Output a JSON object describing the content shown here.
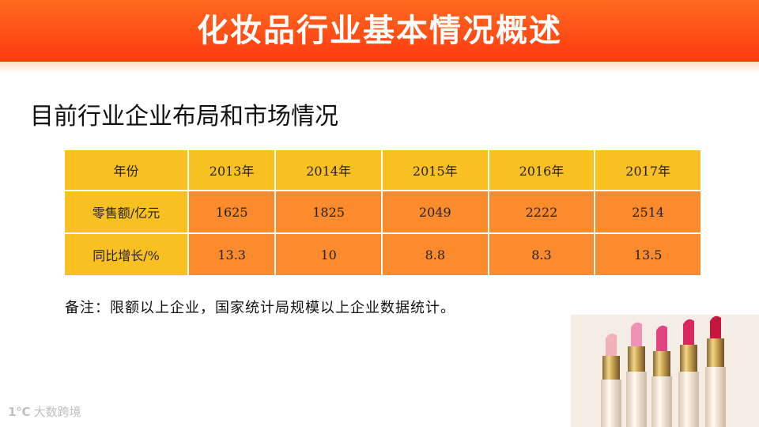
{
  "header": {
    "title": "化妆品行业基本情况概述"
  },
  "subtitle": "目前行业企业布局和市场情况",
  "table": {
    "headers": [
      "年份",
      "2013年",
      "2014年",
      "2015年",
      "2016年",
      "2017年"
    ],
    "rows": [
      [
        "零售额/亿元",
        "1625",
        "1825",
        "2049",
        "2222",
        "2514"
      ],
      [
        "同比增长/%",
        "13.3",
        "10",
        "8.8",
        "8.3",
        "13.5"
      ]
    ]
  },
  "note": "备注：限额以上企业，国家统计局规模以上企业数据统计。",
  "watermark": {
    "icon": "1℃",
    "text": "大数跨境"
  },
  "colors": {
    "banner": "#ff4a14",
    "header_cell": "#f9c021",
    "data_cell": "#fb8b2c"
  }
}
